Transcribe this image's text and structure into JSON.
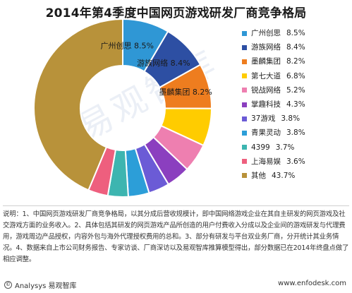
{
  "title": "2014年第4季度中国网页游戏研发厂商竞争格局",
  "chart_data": {
    "type": "pie",
    "title": "2014年第4季度中国网页游戏研发厂商竞争格局",
    "unit": "%",
    "categories": [
      "广州创思",
      "游族网络",
      "墨麟集团",
      "第七大道",
      "锐战网络",
      "掌趣科技",
      "37游戏",
      "青果灵动",
      "4399",
      "上海易娱",
      "其他"
    ],
    "values": [
      8.5,
      8.4,
      8.2,
      6.8,
      5.2,
      4.3,
      3.8,
      3.8,
      3.7,
      3.6,
      43.7
    ],
    "value_labels": [
      "8.5%",
      "8.4%",
      "8.2%",
      "6.8%",
      "5.2%",
      "4.3%",
      "3.8%",
      "3.8%",
      "3.7%",
      "3.6%",
      "43.7%"
    ],
    "colors": [
      "#2f97d5",
      "#2d4fa3",
      "#ee7d1f",
      "#ffcc00",
      "#ee7fb0",
      "#8b3fbf",
      "#6b5bd6",
      "#2c9ed8",
      "#3db5b0",
      "#ee5f7e",
      "#b8923a"
    ],
    "inner_labels": [
      {
        "name": "广州创思",
        "value": "8.5%"
      },
      {
        "name": "游族网络",
        "value": "8.4%"
      },
      {
        "name": "墨麟集团",
        "value": "8.2%"
      }
    ],
    "legend_position": "right"
  },
  "note": "说明：1、中国网页游戏研发厂商竞争格局，以其分成后营收规模计，即中国网络游戏企业在其自主研发的网页游戏及社交游戏方面的业务收入。2、具体包括其研发的网页游戏产品所创造的用户付费收入分成以及企业间的游戏研发与代理费用，游戏周边产品授权，内容外包与海外代理授权费用的总和。3、部分有研发与平台双业务厂商，分开统计其业务情况。4、数据来自上市公司财务报告、专家访谈、厂商深访以及易观智库推算模型得出，部分数据已在2014年终盘点做了相应调整。",
  "footer": {
    "logo_symbol": "©",
    "source": "Analysys 易观智库",
    "website": "www.enfodesk.com"
  },
  "watermark": "易观智库"
}
